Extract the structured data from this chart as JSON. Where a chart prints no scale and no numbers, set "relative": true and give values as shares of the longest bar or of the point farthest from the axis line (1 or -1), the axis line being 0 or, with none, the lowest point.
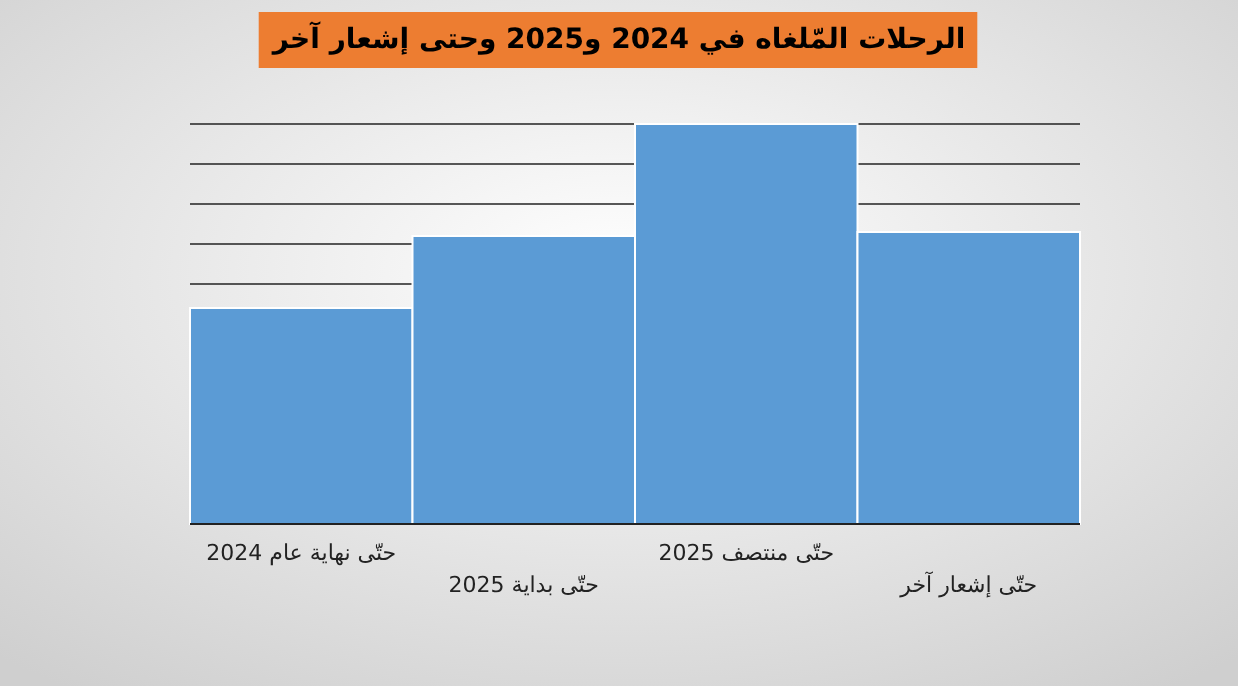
{
  "chart_data": {
    "type": "bar",
    "title": "الرحلات المّلغاه في 2024 و2025 وحتى إشعار آخر",
    "categories": [
      "حتّى نهاية عام 2024",
      "حتّى بداية 2025",
      "حتّى منتصف 2025",
      "حتّى إشعار آخر"
    ],
    "values": [
      0.54,
      0.72,
      1,
      0.73
    ],
    "color": "#5b9bd5",
    "relative": true,
    "grid": true
  }
}
